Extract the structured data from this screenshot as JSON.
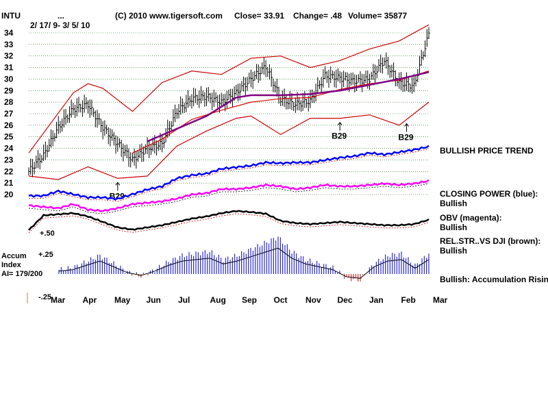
{
  "header": {
    "symbol": "INTU",
    "dots": "...",
    "date_range": "2/ 17/ 9- 3/ 5/ 10",
    "copyright": "(C) 2010 www.tigersoft.com",
    "close_text": "Close=  33.91",
    "change_text": "Change= .48",
    "volume_text": "Volume= 35877"
  },
  "colors": {
    "price_bars": "#000000",
    "bands": "#cc0000",
    "moving_avg_red": "#dd0000",
    "moving_avg_purple": "#800080",
    "closing_power": "#0000ff",
    "obv": "#ff00ff",
    "rel_str": "#000000",
    "accum_pos": "#0000cc",
    "accum_neg": "#cc0000",
    "grid": "#006600"
  },
  "chart_data": {
    "type": "line",
    "y_ticks": [
      20,
      21,
      22,
      23,
      24,
      25,
      26,
      27,
      28,
      29,
      30,
      31,
      32,
      33,
      34
    ],
    "ylim": [
      20,
      34
    ],
    "months": [
      "Mar",
      "Apr",
      "May",
      "Jun",
      "Jul",
      "Aug",
      "Sep",
      "Oct",
      "Nov",
      "Dec",
      "Jan",
      "Feb",
      "Mar"
    ],
    "close_series": {
      "x": [
        0,
        2,
        4,
        6,
        8,
        10,
        12,
        14,
        16,
        18,
        20,
        22,
        24,
        26,
        28,
        30,
        32,
        34,
        36,
        38,
        40,
        42,
        44,
        46,
        48,
        50,
        52,
        54
      ],
      "values": [
        22.0,
        23.4,
        25.8,
        27.4,
        27.8,
        25.8,
        24.4,
        23.0,
        24.0,
        24.4,
        27.2,
        28.3,
        28.5,
        28.0,
        28.8,
        30.0,
        31.1,
        28.3,
        27.8,
        28.1,
        30.3,
        30.1,
        29.8,
        30.0,
        31.6,
        29.7,
        29.4,
        33.9
      ]
    },
    "upper_band": {
      "x": [
        0,
        6,
        8,
        10,
        14,
        18,
        22,
        26,
        30,
        34,
        38,
        42,
        46,
        50,
        54
      ],
      "values": [
        23.6,
        28.8,
        29.6,
        29.2,
        27.2,
        29.7,
        30.7,
        30.4,
        31.8,
        32.0,
        31.0,
        31.6,
        32.6,
        33.3,
        34.7
      ]
    },
    "lower_band": {
      "x": [
        0,
        4,
        8,
        12,
        16,
        20,
        24,
        28,
        30,
        34,
        38,
        42,
        46,
        50,
        54
      ],
      "values": [
        21.6,
        21.3,
        22.4,
        21.4,
        21.6,
        24.2,
        25.5,
        26.6,
        26.8,
        25.2,
        26.6,
        26.6,
        26.9,
        26.0,
        28.0
      ]
    },
    "ma_red": {
      "x": [
        14,
        18,
        22,
        26,
        30,
        34,
        38,
        42,
        46,
        50,
        54
      ],
      "values": [
        23.6,
        24.8,
        26.5,
        27.3,
        28.0,
        28.3,
        28.4,
        29.1,
        29.6,
        29.9,
        30.7
      ]
    },
    "ma_purple": {
      "x": [
        16,
        20,
        24,
        28,
        30,
        34,
        38,
        42,
        46,
        50,
        54
      ],
      "values": [
        24.6,
        25.7,
        26.8,
        28.4,
        28.6,
        28.6,
        28.7,
        29.0,
        29.5,
        30.0,
        30.6
      ]
    },
    "closing_power": [
      0.38,
      0.38,
      0.44,
      0.4,
      0.36,
      0.36,
      0.34,
      0.4,
      0.46,
      0.5,
      0.6,
      0.64,
      0.66,
      0.72,
      0.74,
      0.76,
      0.8,
      0.79,
      0.8,
      0.8,
      0.83,
      0.86,
      0.88,
      0.92,
      0.9,
      0.93,
      0.96,
      1.0
    ],
    "obv": [
      0.4,
      0.38,
      0.36,
      0.42,
      0.34,
      0.32,
      0.36,
      0.42,
      0.44,
      0.46,
      0.5,
      0.56,
      0.58,
      0.64,
      0.64,
      0.66,
      0.7,
      0.68,
      0.64,
      0.66,
      0.7,
      0.68,
      0.68,
      0.7,
      0.72,
      0.7,
      0.72,
      0.76
    ],
    "rel_str": [
      0.55,
      0.82,
      0.84,
      0.86,
      0.8,
      0.7,
      0.6,
      0.56,
      0.6,
      0.64,
      0.7,
      0.76,
      0.8,
      0.86,
      0.9,
      0.88,
      0.85,
      0.72,
      0.68,
      0.66,
      0.68,
      0.7,
      0.68,
      0.66,
      0.64,
      0.64,
      0.66,
      0.74
    ],
    "accum_index": [
      0.1,
      0.15,
      0.3,
      0.45,
      0.25,
      0.05,
      -0.05,
      0.1,
      0.3,
      0.45,
      0.5,
      0.55,
      0.35,
      0.45,
      0.6,
      0.75,
      0.9,
      0.55,
      0.35,
      0.25,
      0.15,
      -0.1,
      -0.15,
      0.25,
      0.45,
      0.5,
      0.2,
      0.5
    ],
    "b29_signals": [
      {
        "x": 12,
        "label": "B29"
      },
      {
        "x": 42,
        "label": "B29"
      },
      {
        "x": 51,
        "label": "B29"
      }
    ]
  },
  "labels": {
    "bullish_price_trend": "BULLISH PRICE TREND",
    "closing_power_title": "CLOSING POWER (blue):",
    "closing_power_status": "Bullish",
    "obv_title": "OBV (magenta):",
    "obv_status": "Bullish",
    "relstr_title": "REL.STR..VS DJI (brown):",
    "relstr_status": "Bullish",
    "accum_text": "Bullish: Accumulation Rising",
    "accum_label": "Accum",
    "index_label": "Index",
    "ai_label": "AI= 179/200",
    "plus50": "+.50",
    "plus25": "+.25",
    "minus25": "-.25"
  }
}
